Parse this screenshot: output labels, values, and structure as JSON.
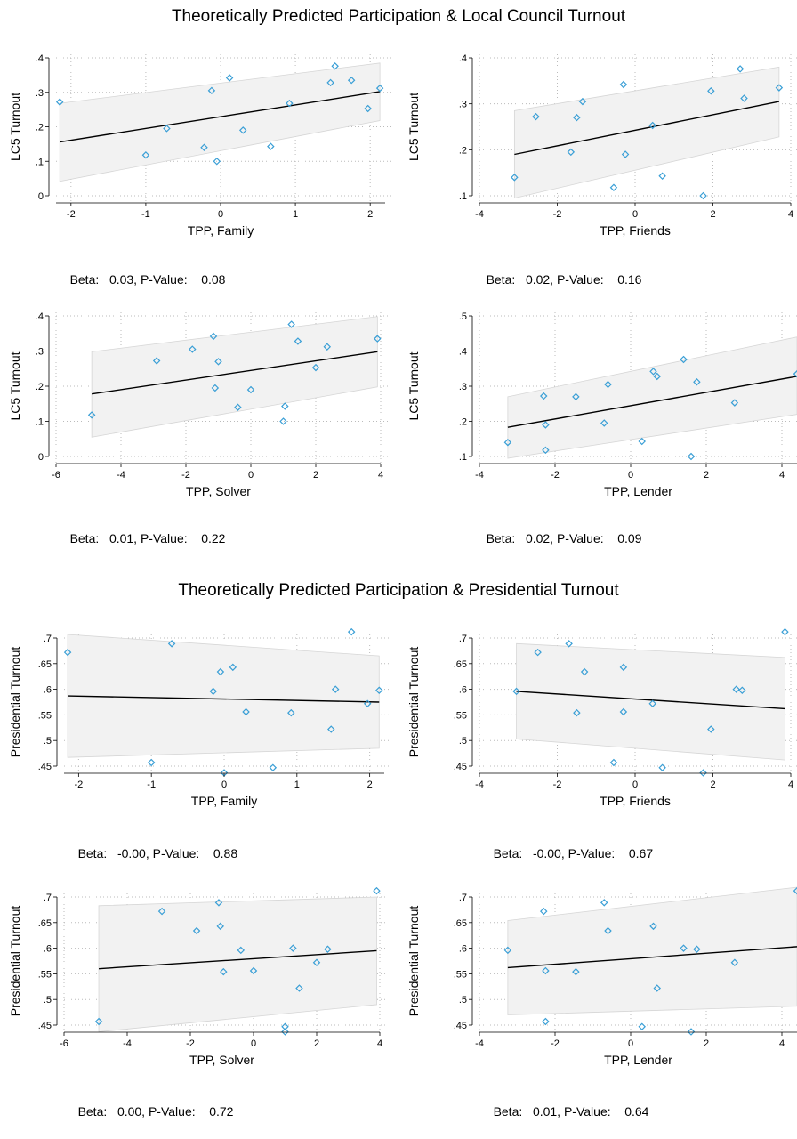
{
  "sections": [
    {
      "title": "Theoretically Predicted Participation & Local Council Turnout"
    },
    {
      "title": "Theoretically Predicted Participation & Presidential Turnout"
    }
  ],
  "colors": {
    "marker": "#3a9fd6",
    "ci_fill": "#f2f2f2",
    "ci_stroke": "#d6d6d6",
    "fit": "#000000",
    "grid": "#bbbbbb"
  },
  "chart_data": [
    {
      "type": "scatter",
      "fit": "linear with 95% CI",
      "xlabel": "TPP, Family",
      "ylabel": "LC5 Turnout",
      "xlim": [
        -2.2,
        2.2
      ],
      "ylim": [
        0,
        0.4
      ],
      "xticks": [
        -2,
        -1,
        0,
        1,
        2
      ],
      "xtick_labels": [
        "-2",
        "-1",
        "0",
        "1",
        "2"
      ],
      "yticks": [
        0,
        0.1,
        0.2,
        0.3,
        0.4
      ],
      "ytick_labels": [
        "0",
        ".1",
        ".2",
        ".3",
        ".4"
      ],
      "x": [
        -2.15,
        -1.0,
        -0.72,
        -0.22,
        -0.12,
        0.12,
        0.3,
        0.67,
        0.92,
        1.47,
        1.53,
        1.75,
        1.97,
        2.13,
        -0.05
      ],
      "y": [
        0.272,
        0.118,
        0.195,
        0.14,
        0.305,
        0.342,
        0.19,
        0.143,
        0.268,
        0.328,
        0.376,
        0.335,
        0.253,
        0.312,
        0.1
      ],
      "fit_line": {
        "x": [
          -2.15,
          2.13
        ],
        "y": [
          0.156,
          0.302
        ]
      },
      "ci_band": {
        "x": [
          -2.15,
          2.13
        ],
        "lower": [
          0.042,
          0.218
        ],
        "upper": [
          0.268,
          0.385
        ]
      },
      "beta_label": "Beta:",
      "beta": "0.03, P-Value:",
      "pvalue": "0.08"
    },
    {
      "type": "scatter",
      "fit": "linear with 95% CI",
      "xlabel": "TPP, Friends",
      "ylabel": "LC5 Turnout",
      "xlim": [
        -4,
        4
      ],
      "ylim": [
        0.1,
        0.4
      ],
      "xticks": [
        -4,
        -2,
        0,
        2,
        4
      ],
      "xtick_labels": [
        "-4",
        "-2",
        "0",
        "2",
        "4"
      ],
      "yticks": [
        0.1,
        0.2,
        0.3,
        0.4
      ],
      "ytick_labels": [
        ".1",
        ".2",
        ".3",
        ".4"
      ],
      "x": [
        -3.1,
        -2.55,
        -1.65,
        -1.5,
        -1.35,
        -0.55,
        -0.3,
        -0.25,
        0.45,
        0.7,
        1.75,
        1.95,
        2.7,
        2.8,
        3.7
      ],
      "y": [
        0.14,
        0.272,
        0.195,
        0.27,
        0.305,
        0.118,
        0.342,
        0.19,
        0.253,
        0.143,
        0.1,
        0.328,
        0.376,
        0.312,
        0.335
      ],
      "fit_line": {
        "x": [
          -3.1,
          3.7
        ],
        "y": [
          0.19,
          0.305
        ]
      },
      "ci_band": {
        "x": [
          -3.1,
          3.7
        ],
        "lower": [
          0.095,
          0.228
        ],
        "upper": [
          0.285,
          0.38
        ]
      },
      "beta_label": "Beta:",
      "beta": "0.02, P-Value:",
      "pvalue": "0.16"
    },
    {
      "type": "scatter",
      "fit": "linear with 95% CI",
      "xlabel": "TPP, Solver",
      "ylabel": "LC5 Turnout",
      "xlim": [
        -6,
        4
      ],
      "ylim": [
        0,
        0.4
      ],
      "xticks": [
        -6,
        -4,
        -2,
        0,
        2,
        4
      ],
      "xtick_labels": [
        "-6",
        "-4",
        "-2",
        "0",
        "2",
        "4"
      ],
      "yticks": [
        0,
        0.1,
        0.2,
        0.3,
        0.4
      ],
      "ytick_labels": [
        "0",
        ".1",
        ".2",
        ".3",
        ".4"
      ],
      "x": [
        -4.9,
        -2.9,
        -1.8,
        -1.15,
        -1.1,
        -1.0,
        -0.4,
        0.0,
        1.0,
        1.05,
        1.25,
        1.45,
        2.0,
        2.35,
        3.9
      ],
      "y": [
        0.118,
        0.272,
        0.305,
        0.342,
        0.195,
        0.27,
        0.14,
        0.19,
        0.1,
        0.143,
        0.376,
        0.328,
        0.253,
        0.312,
        0.335
      ],
      "fit_line": {
        "x": [
          -4.9,
          3.9
        ],
        "y": [
          0.178,
          0.298
        ]
      },
      "ci_band": {
        "x": [
          -4.9,
          3.9
        ],
        "lower": [
          0.055,
          0.198
        ],
        "upper": [
          0.298,
          0.398
        ]
      },
      "beta_label": "Beta:",
      "beta": "0.01, P-Value:",
      "pvalue": "0.22"
    },
    {
      "type": "scatter",
      "fit": "linear with 95% CI",
      "xlabel": "TPP, Lender",
      "ylabel": "LC5 Turnout",
      "xlim": [
        -4,
        4.4
      ],
      "ylim": [
        0.1,
        0.5
      ],
      "xticks": [
        -4,
        -2,
        0,
        2,
        4
      ],
      "xtick_labels": [
        "-4",
        "-2",
        "0",
        "2",
        "4"
      ],
      "yticks": [
        0.1,
        0.2,
        0.3,
        0.4,
        0.5
      ],
      "ytick_labels": [
        ".1",
        ".2",
        ".3",
        ".4",
        ".5"
      ],
      "x": [
        -3.25,
        -2.3,
        -2.25,
        -2.25,
        -1.45,
        -0.7,
        -0.6,
        0.3,
        0.6,
        0.7,
        1.4,
        1.6,
        1.75,
        2.75,
        4.4
      ],
      "y": [
        0.14,
        0.272,
        0.19,
        0.118,
        0.27,
        0.195,
        0.305,
        0.143,
        0.342,
        0.328,
        0.376,
        0.1,
        0.312,
        0.253,
        0.335
      ],
      "fit_line": {
        "x": [
          -3.25,
          4.4
        ],
        "y": [
          0.183,
          0.328
        ]
      },
      "ci_band": {
        "x": [
          -3.25,
          4.4
        ],
        "lower": [
          0.095,
          0.22
        ],
        "upper": [
          0.27,
          0.44
        ]
      },
      "beta_label": "Beta:",
      "beta": "0.02, P-Value:",
      "pvalue": "0.09"
    },
    {
      "type": "scatter",
      "fit": "linear with 95% CI",
      "xlabel": "TPP, Family",
      "ylabel": "Presidential Turnout",
      "xlim": [
        -2.2,
        2.2
      ],
      "ylim": [
        0.45,
        0.7
      ],
      "xticks": [
        -2,
        -1,
        0,
        1,
        2
      ],
      "xtick_labels": [
        "-2",
        "-1",
        "0",
        "1",
        "2"
      ],
      "yticks": [
        0.45,
        0.5,
        0.55,
        0.6,
        0.65,
        0.7
      ],
      "ytick_labels": [
        ".45",
        ".5",
        ".55",
        ".6",
        ".65",
        ".7"
      ],
      "x": [
        -2.15,
        -1.0,
        -0.72,
        -0.15,
        -0.05,
        0.12,
        0.3,
        0.67,
        0.92,
        1.47,
        1.53,
        1.75,
        1.97,
        2.13,
        0.0
      ],
      "y": [
        0.672,
        0.457,
        0.689,
        0.596,
        0.634,
        0.643,
        0.556,
        0.447,
        0.554,
        0.522,
        0.6,
        0.712,
        0.572,
        0.598,
        0.437
      ],
      "fit_line": {
        "x": [
          -2.15,
          2.13
        ],
        "y": [
          0.587,
          0.575
        ]
      },
      "ci_band": {
        "x": [
          -2.15,
          2.13
        ],
        "lower": [
          0.467,
          0.485
        ],
        "upper": [
          0.707,
          0.665
        ]
      },
      "beta_label": "Beta:",
      "beta": "-0.00, P-Value:",
      "pvalue": "0.88"
    },
    {
      "type": "scatter",
      "fit": "linear with 95% CI",
      "xlabel": "TPP, Friends",
      "ylabel": "Presidential Turnout",
      "xlim": [
        -4,
        4
      ],
      "ylim": [
        0.45,
        0.7
      ],
      "xticks": [
        -4,
        -2,
        0,
        2,
        4
      ],
      "xtick_labels": [
        "-4",
        "-2",
        "0",
        "2",
        "4"
      ],
      "yticks": [
        0.45,
        0.5,
        0.55,
        0.6,
        0.65,
        0.7
      ],
      "ytick_labels": [
        ".45",
        ".5",
        ".55",
        ".6",
        ".65",
        ".7"
      ],
      "x": [
        -3.05,
        -2.5,
        -1.7,
        -1.5,
        -1.3,
        -0.55,
        -0.3,
        -0.3,
        0.45,
        0.7,
        1.75,
        1.95,
        2.6,
        2.75,
        3.85
      ],
      "y": [
        0.596,
        0.672,
        0.689,
        0.554,
        0.634,
        0.457,
        0.643,
        0.556,
        0.572,
        0.447,
        0.437,
        0.522,
        0.6,
        0.598,
        0.712
      ],
      "fit_line": {
        "x": [
          -3.05,
          3.85
        ],
        "y": [
          0.596,
          0.562
        ]
      },
      "ci_band": {
        "x": [
          -3.05,
          3.85
        ],
        "lower": [
          0.503,
          0.462
        ],
        "upper": [
          0.689,
          0.662
        ]
      },
      "beta_label": "Beta:",
      "beta": "-0.00, P-Value:",
      "pvalue": "0.67"
    },
    {
      "type": "scatter",
      "fit": "linear with 95% CI",
      "xlabel": "TPP, Solver",
      "ylabel": "Presidential Turnout",
      "xlim": [
        -6,
        4
      ],
      "ylim": [
        0.45,
        0.7
      ],
      "xticks": [
        -6,
        -4,
        -2,
        0,
        2,
        4
      ],
      "xtick_labels": [
        "-6",
        "-4",
        "-2",
        "0",
        "2",
        "4"
      ],
      "yticks": [
        0.45,
        0.5,
        0.55,
        0.6,
        0.65,
        0.7
      ],
      "ytick_labels": [
        ".45",
        ".5",
        ".55",
        ".6",
        ".65",
        ".7"
      ],
      "x": [
        -4.9,
        -2.9,
        -1.8,
        -1.1,
        -1.05,
        -0.95,
        -0.4,
        0.0,
        1.0,
        1.0,
        1.25,
        1.45,
        2.0,
        2.35,
        3.9
      ],
      "y": [
        0.457,
        0.672,
        0.634,
        0.689,
        0.643,
        0.554,
        0.596,
        0.556,
        0.447,
        0.437,
        0.6,
        0.522,
        0.572,
        0.598,
        0.712
      ],
      "fit_line": {
        "x": [
          -4.9,
          3.9
        ],
        "y": [
          0.56,
          0.595
        ]
      },
      "ci_band": {
        "x": [
          -4.9,
          3.9
        ],
        "lower": [
          0.437,
          0.49
        ],
        "upper": [
          0.683,
          0.7
        ]
      },
      "beta_label": "Beta:",
      "beta": "0.00, P-Value:",
      "pvalue": "0.72"
    },
    {
      "type": "scatter",
      "fit": "linear with 95% CI",
      "xlabel": "TPP, Lender",
      "ylabel": "Presidential Turnout",
      "xlim": [
        -4,
        4.4
      ],
      "ylim": [
        0.45,
        0.7
      ],
      "xticks": [
        -4,
        -2,
        0,
        2,
        4
      ],
      "xtick_labels": [
        "-4",
        "-2",
        "0",
        "2",
        "4"
      ],
      "yticks": [
        0.45,
        0.5,
        0.55,
        0.6,
        0.65,
        0.7
      ],
      "ytick_labels": [
        ".45",
        ".5",
        ".55",
        ".6",
        ".65",
        ".7"
      ],
      "x": [
        -3.25,
        -2.3,
        -2.25,
        -2.25,
        -1.45,
        -0.7,
        -0.6,
        0.3,
        0.6,
        0.7,
        1.4,
        1.6,
        1.75,
        2.75,
        4.4
      ],
      "y": [
        0.596,
        0.672,
        0.556,
        0.457,
        0.554,
        0.689,
        0.634,
        0.447,
        0.643,
        0.522,
        0.6,
        0.437,
        0.598,
        0.572,
        0.712
      ],
      "fit_line": {
        "x": [
          -3.25,
          4.4
        ],
        "y": [
          0.562,
          0.603
        ]
      },
      "ci_band": {
        "x": [
          -3.25,
          4.4
        ],
        "lower": [
          0.47,
          0.487
        ],
        "upper": [
          0.654,
          0.719
        ]
      },
      "beta_label": "Beta:",
      "beta": "0.01, P-Value:",
      "pvalue": "0.64"
    }
  ]
}
